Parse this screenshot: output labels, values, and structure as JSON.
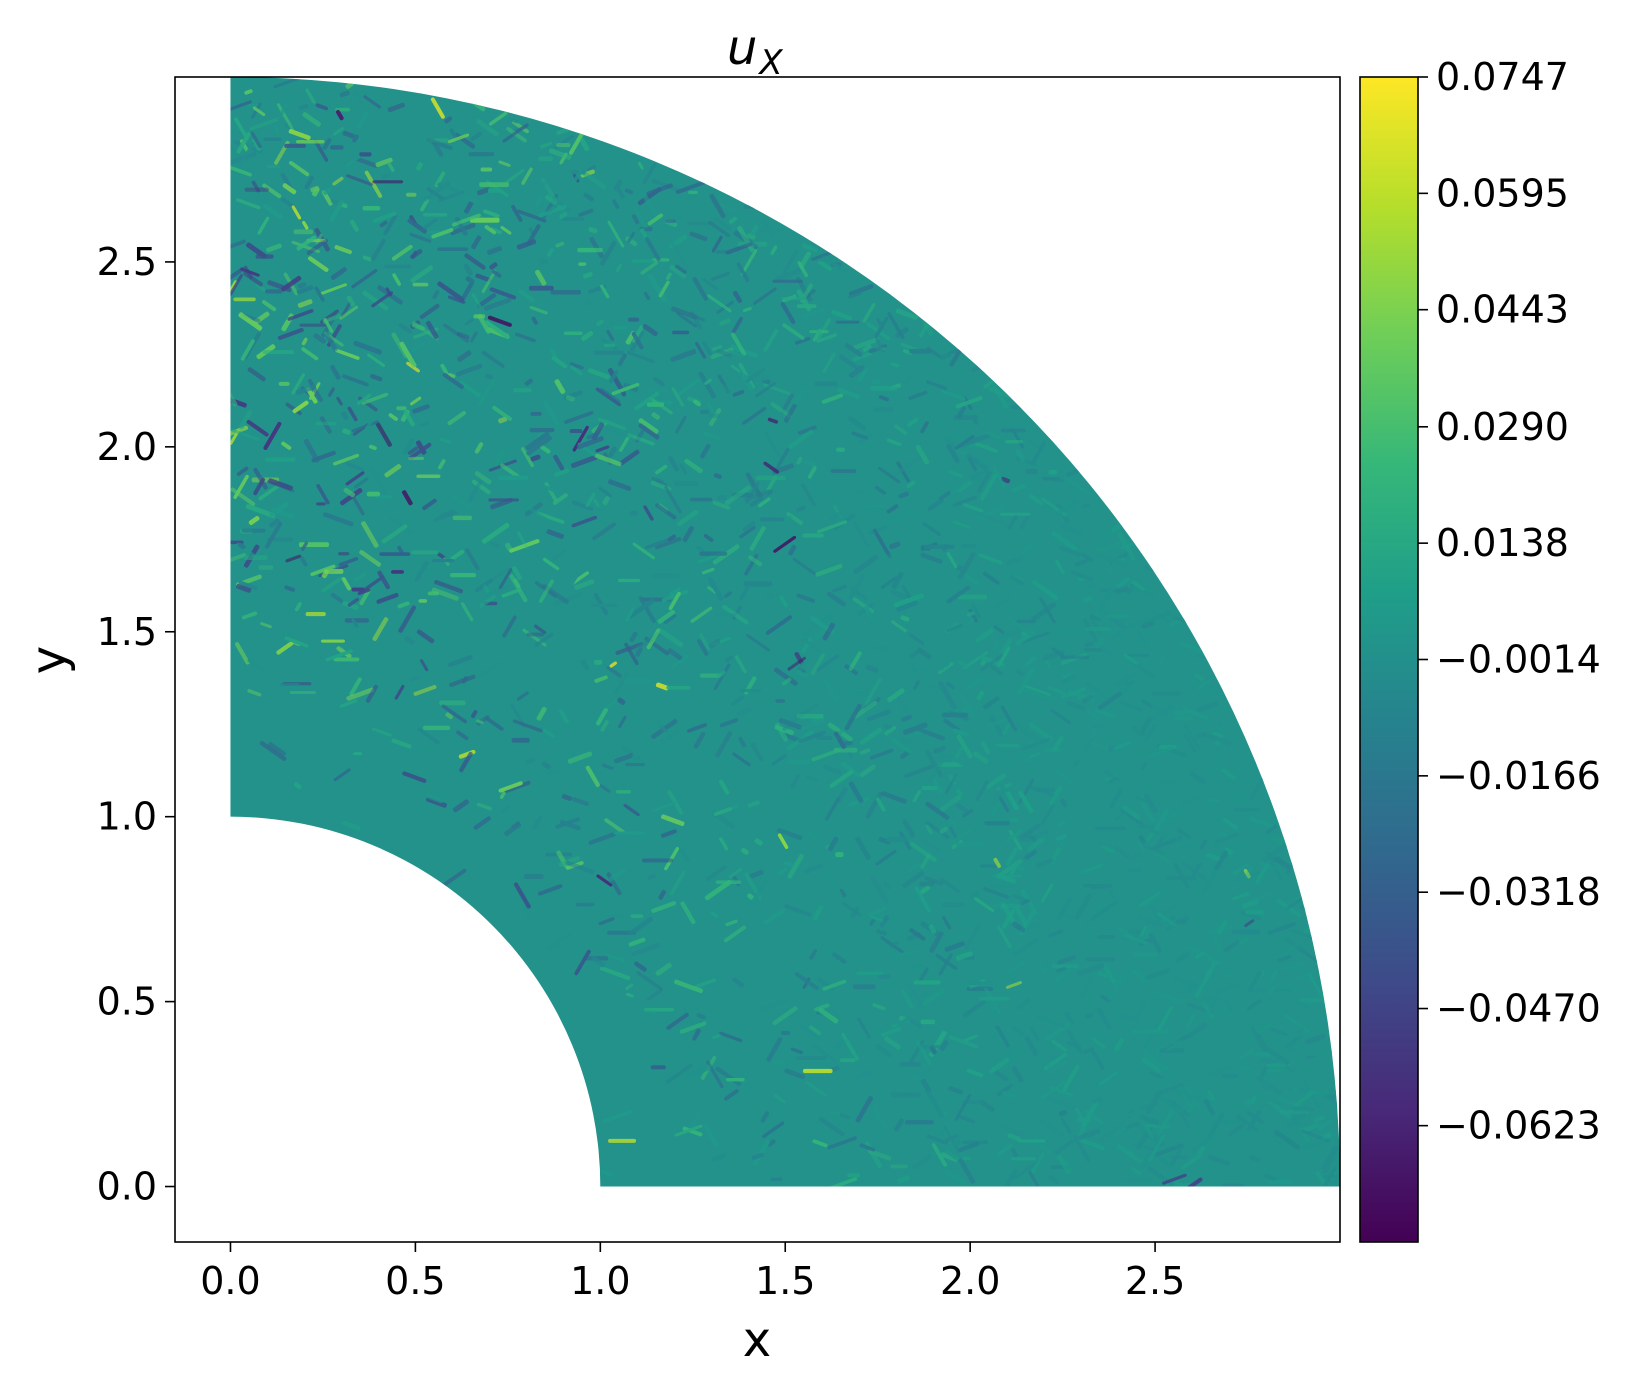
{
  "chart_data": {
    "type": "heatmap",
    "title_symbol": "u",
    "title_subscript": "X",
    "xlabel": "x",
    "ylabel": "y",
    "xlim": [
      -0.15,
      3.0
    ],
    "ylim": [
      -0.15,
      3.0
    ],
    "x_ticks": [
      0.0,
      0.5,
      1.0,
      1.5,
      2.0,
      2.5
    ],
    "x_tick_labels": [
      "0.0",
      "0.5",
      "1.0",
      "1.5",
      "2.0",
      "2.5"
    ],
    "y_ticks": [
      0.0,
      0.5,
      1.0,
      1.5,
      2.0,
      2.5
    ],
    "y_tick_labels": [
      "0.0",
      "0.5",
      "1.0",
      "1.5",
      "2.0",
      "2.5"
    ],
    "domain": {
      "shape": "quarter annulus",
      "inner_radius": 1.0,
      "outer_radius": 3.0,
      "angle_range_deg": [
        0,
        90
      ]
    },
    "field_background_value": 0.0,
    "colormap": "viridis",
    "colormap_stops": [
      "#440154",
      "#482878",
      "#3e4a89",
      "#31688e",
      "#26828e",
      "#1f9e89",
      "#35b779",
      "#6ece58",
      "#b5de2b",
      "#fde725"
    ],
    "colorbar": {
      "vmin": -0.0775,
      "vmax": 0.0747,
      "ticks": [
        0.0747,
        0.0595,
        0.0443,
        0.029,
        0.0138,
        -0.0014,
        -0.0166,
        -0.0318,
        -0.047,
        -0.0623
      ],
      "tick_labels": [
        "0.0747",
        "0.0595",
        "0.0443",
        "0.0290",
        "0.0138",
        "−0.0014",
        "−0.0166",
        "−0.0318",
        "−0.0470",
        "−0.0623"
      ]
    },
    "grid": false,
    "legend": "none"
  }
}
